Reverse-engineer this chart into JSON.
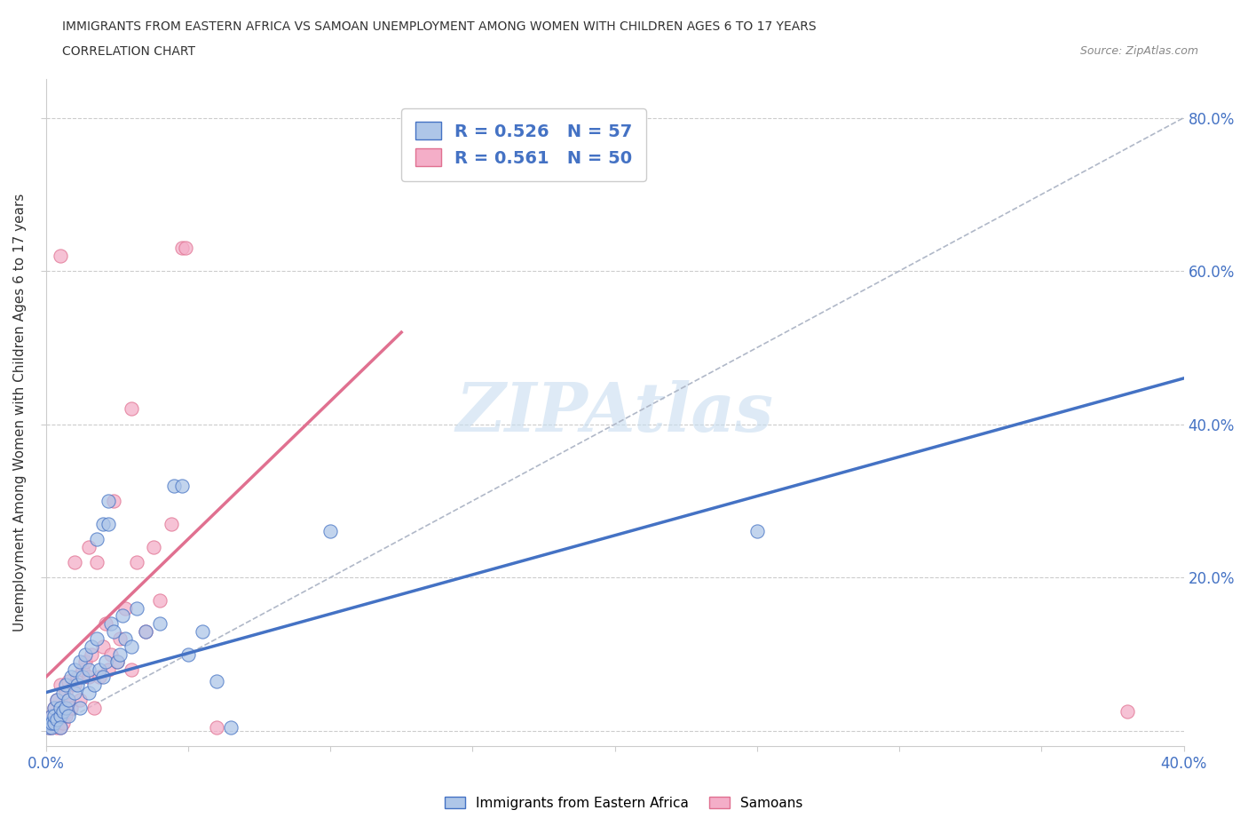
{
  "title_line1": "IMMIGRANTS FROM EASTERN AFRICA VS SAMOAN UNEMPLOYMENT AMONG WOMEN WITH CHILDREN AGES 6 TO 17 YEARS",
  "title_line2": "CORRELATION CHART",
  "source_text": "Source: ZipAtlas.com",
  "ylabel": "Unemployment Among Women with Children Ages 6 to 17 years",
  "xlim": [
    0.0,
    0.4
  ],
  "ylim": [
    -0.02,
    0.85
  ],
  "watermark": "ZIPAtlas",
  "legend1_label": "R = 0.526   N = 57",
  "legend2_label": "R = 0.561   N = 50",
  "blue_color": "#aec6e8",
  "pink_color": "#f4aec8",
  "blue_line_color": "#4472c4",
  "pink_line_color": "#e07090",
  "diag_line_color": "#b0b8c8",
  "blue_scatter": [
    [
      0.001,
      0.005
    ],
    [
      0.001,
      0.01
    ],
    [
      0.002,
      0.02
    ],
    [
      0.002,
      0.005
    ],
    [
      0.002,
      0.01
    ],
    [
      0.003,
      0.03
    ],
    [
      0.003,
      0.01
    ],
    [
      0.003,
      0.02
    ],
    [
      0.004,
      0.04
    ],
    [
      0.004,
      0.015
    ],
    [
      0.005,
      0.02
    ],
    [
      0.005,
      0.03
    ],
    [
      0.005,
      0.005
    ],
    [
      0.006,
      0.05
    ],
    [
      0.006,
      0.025
    ],
    [
      0.007,
      0.03
    ],
    [
      0.007,
      0.06
    ],
    [
      0.008,
      0.04
    ],
    [
      0.008,
      0.02
    ],
    [
      0.009,
      0.07
    ],
    [
      0.01,
      0.05
    ],
    [
      0.01,
      0.08
    ],
    [
      0.011,
      0.06
    ],
    [
      0.012,
      0.03
    ],
    [
      0.012,
      0.09
    ],
    [
      0.013,
      0.07
    ],
    [
      0.014,
      0.1
    ],
    [
      0.015,
      0.05
    ],
    [
      0.015,
      0.08
    ],
    [
      0.016,
      0.11
    ],
    [
      0.017,
      0.06
    ],
    [
      0.018,
      0.12
    ],
    [
      0.018,
      0.25
    ],
    [
      0.019,
      0.08
    ],
    [
      0.02,
      0.27
    ],
    [
      0.02,
      0.07
    ],
    [
      0.021,
      0.09
    ],
    [
      0.022,
      0.27
    ],
    [
      0.022,
      0.3
    ],
    [
      0.023,
      0.14
    ],
    [
      0.024,
      0.13
    ],
    [
      0.025,
      0.09
    ],
    [
      0.026,
      0.1
    ],
    [
      0.027,
      0.15
    ],
    [
      0.028,
      0.12
    ],
    [
      0.03,
      0.11
    ],
    [
      0.032,
      0.16
    ],
    [
      0.035,
      0.13
    ],
    [
      0.04,
      0.14
    ],
    [
      0.045,
      0.32
    ],
    [
      0.048,
      0.32
    ],
    [
      0.05,
      0.1
    ],
    [
      0.055,
      0.13
    ],
    [
      0.06,
      0.065
    ],
    [
      0.065,
      0.005
    ],
    [
      0.1,
      0.26
    ],
    [
      0.25,
      0.26
    ]
  ],
  "pink_scatter": [
    [
      0.001,
      0.005
    ],
    [
      0.001,
      0.01
    ],
    [
      0.002,
      0.005
    ],
    [
      0.002,
      0.02
    ],
    [
      0.003,
      0.01
    ],
    [
      0.003,
      0.03
    ],
    [
      0.004,
      0.005
    ],
    [
      0.004,
      0.04
    ],
    [
      0.005,
      0.02
    ],
    [
      0.005,
      0.005
    ],
    [
      0.005,
      0.06
    ],
    [
      0.006,
      0.03
    ],
    [
      0.006,
      0.01
    ],
    [
      0.007,
      0.05
    ],
    [
      0.007,
      0.02
    ],
    [
      0.008,
      0.04
    ],
    [
      0.008,
      0.065
    ],
    [
      0.009,
      0.03
    ],
    [
      0.01,
      0.06
    ],
    [
      0.01,
      0.22
    ],
    [
      0.011,
      0.07
    ],
    [
      0.012,
      0.04
    ],
    [
      0.013,
      0.08
    ],
    [
      0.014,
      0.09
    ],
    [
      0.015,
      0.07
    ],
    [
      0.015,
      0.24
    ],
    [
      0.016,
      0.1
    ],
    [
      0.017,
      0.03
    ],
    [
      0.018,
      0.22
    ],
    [
      0.019,
      0.07
    ],
    [
      0.02,
      0.11
    ],
    [
      0.021,
      0.14
    ],
    [
      0.022,
      0.08
    ],
    [
      0.023,
      0.1
    ],
    [
      0.024,
      0.3
    ],
    [
      0.025,
      0.09
    ],
    [
      0.026,
      0.12
    ],
    [
      0.028,
      0.16
    ],
    [
      0.03,
      0.08
    ],
    [
      0.032,
      0.22
    ],
    [
      0.035,
      0.13
    ],
    [
      0.038,
      0.24
    ],
    [
      0.04,
      0.17
    ],
    [
      0.044,
      0.27
    ],
    [
      0.06,
      0.005
    ],
    [
      0.005,
      0.62
    ],
    [
      0.048,
      0.63
    ],
    [
      0.049,
      0.63
    ],
    [
      0.03,
      0.42
    ],
    [
      0.38,
      0.025
    ]
  ],
  "blue_line_x": [
    0.0,
    0.4
  ],
  "blue_line_y": [
    0.05,
    0.46
  ],
  "pink_line_x": [
    0.0,
    0.125
  ],
  "pink_line_y": [
    0.07,
    0.52
  ],
  "diag_line_x": [
    0.0,
    0.4
  ],
  "diag_line_y": [
    0.0,
    0.8
  ]
}
